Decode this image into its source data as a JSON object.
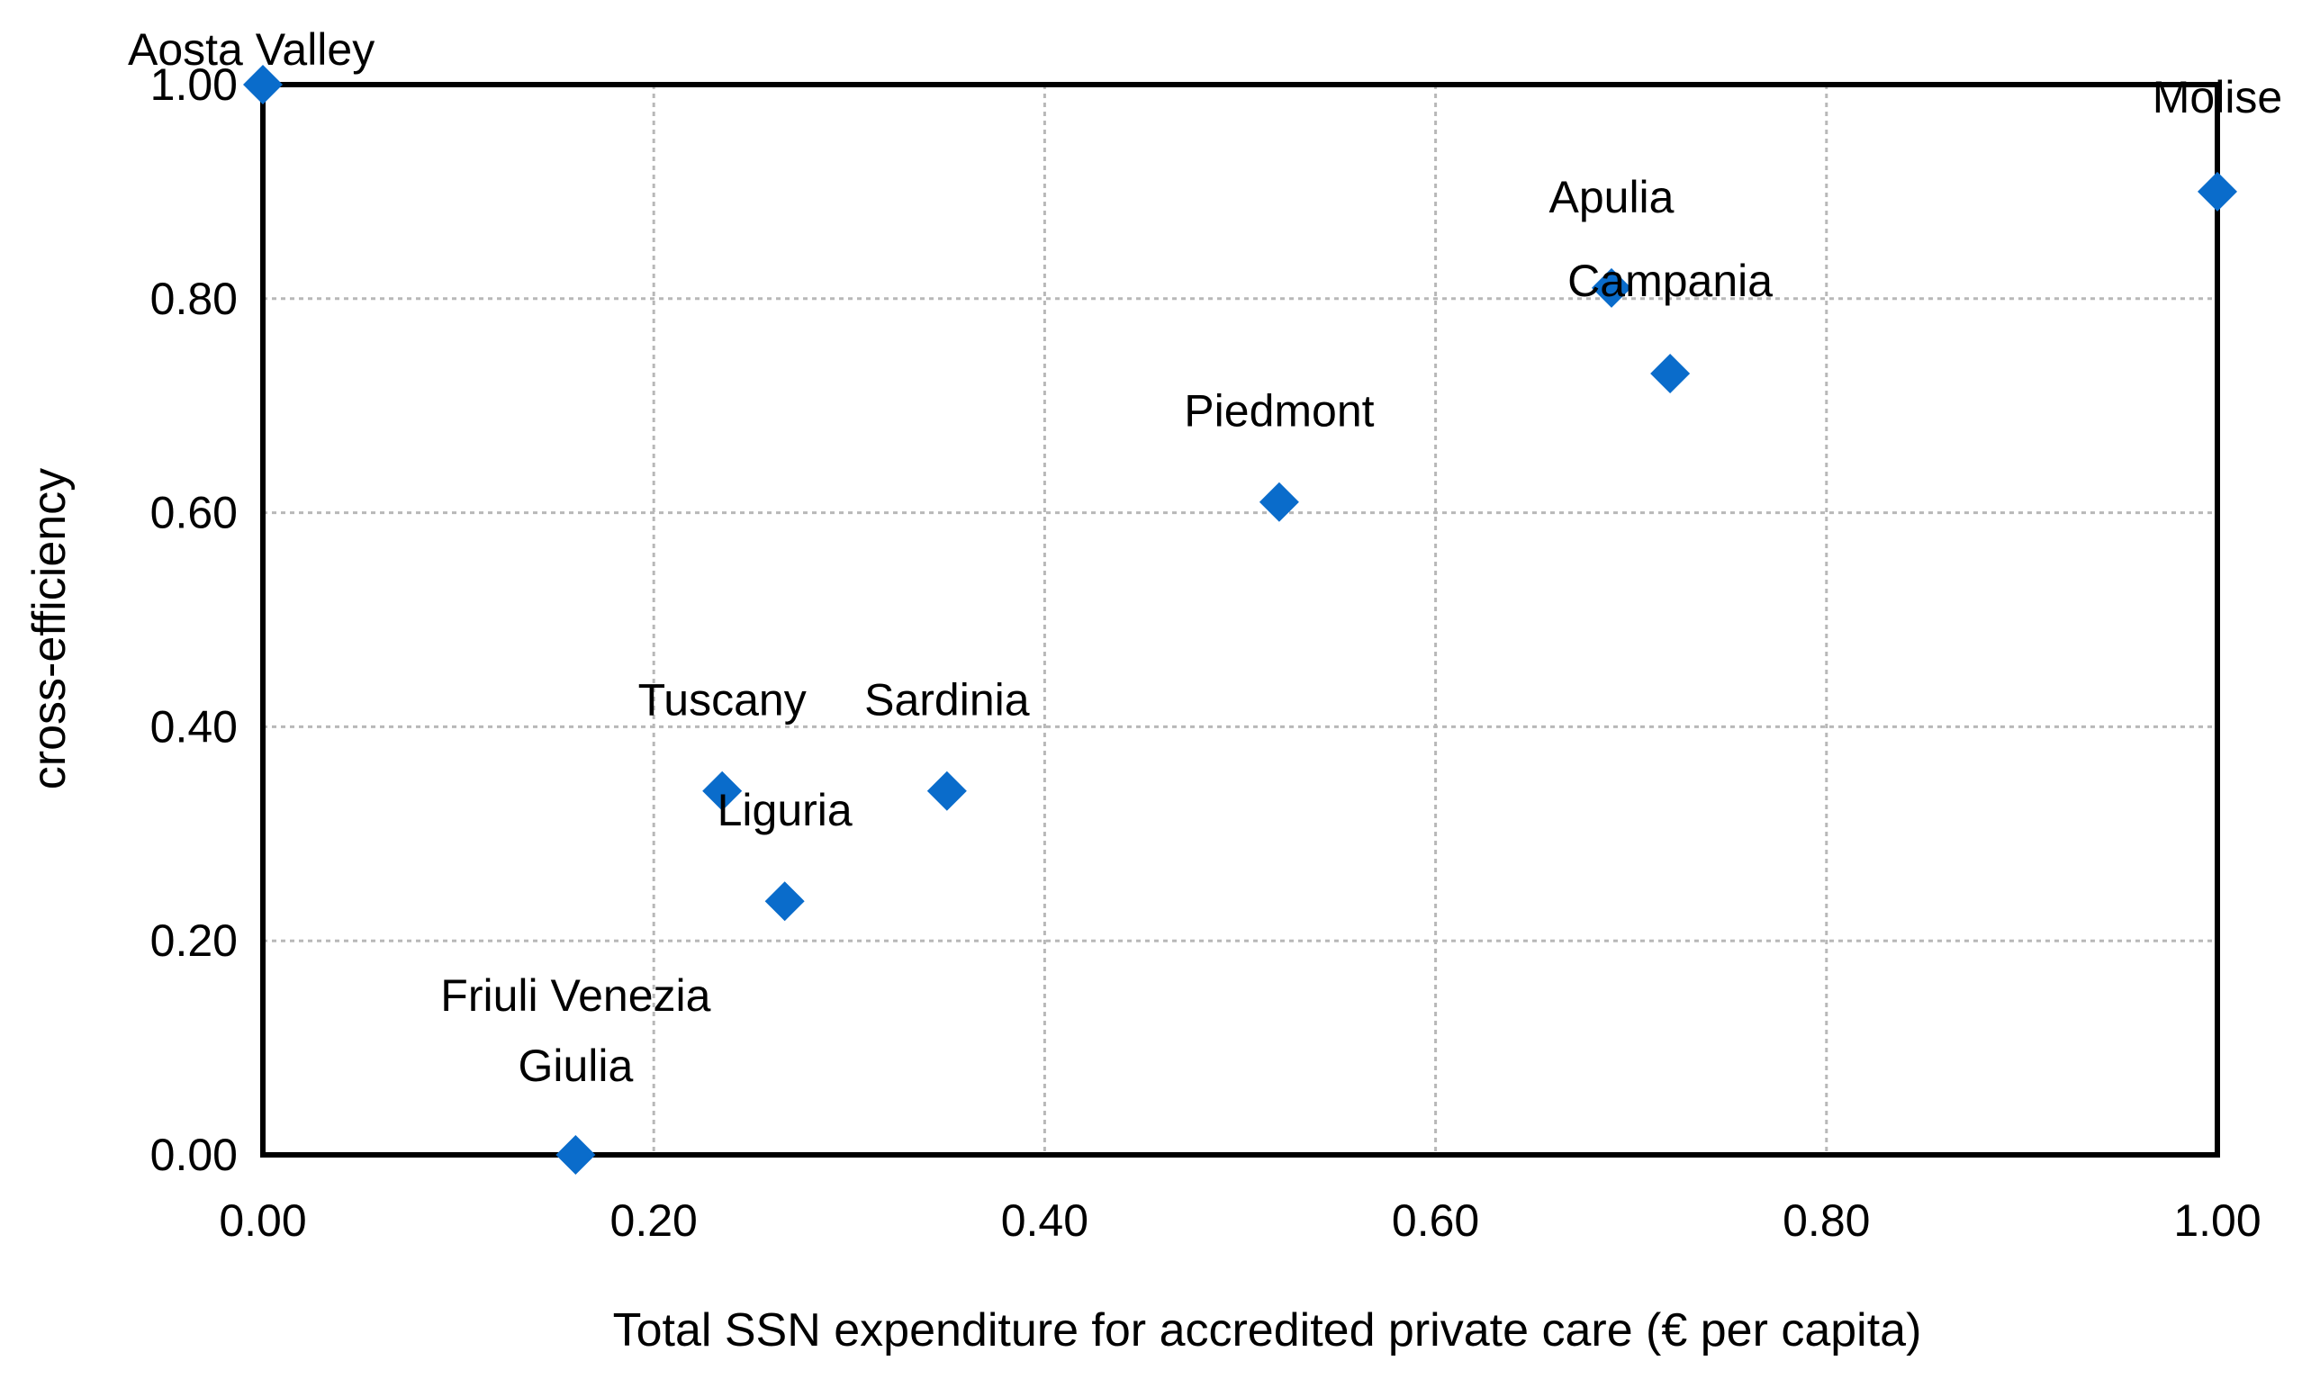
{
  "chart_data": {
    "type": "scatter",
    "title": "",
    "xlabel": "Total SSN expenditure for accredited private care (€ per capita)",
    "ylabel": "cross-efficiency",
    "xlim": [
      0,
      1
    ],
    "ylim": [
      0,
      1
    ],
    "x_ticks": [
      "0.00",
      "0.20",
      "0.40",
      "0.60",
      "0.80",
      "1.00"
    ],
    "y_ticks": [
      "0.00",
      "0.20",
      "0.40",
      "0.60",
      "0.80",
      "1.00"
    ],
    "grid": true,
    "marker_color": "#0a6ccb",
    "points": [
      {
        "label": "Aosta Valley",
        "label_lines": [
          "Aosta Valley"
        ],
        "x": 0.0,
        "y": 1.0
      },
      {
        "label": "Molise",
        "label_lines": [
          "Molise"
        ],
        "x": 1.0,
        "y": 0.9
      },
      {
        "label": "Apulia",
        "label_lines": [
          "Apulia"
        ],
        "x": 0.69,
        "y": 0.81
      },
      {
        "label": "Campania",
        "label_lines": [
          "Campania"
        ],
        "x": 0.72,
        "y": 0.73
      },
      {
        "label": "Piedmont",
        "label_lines": [
          "Piedmont"
        ],
        "x": 0.52,
        "y": 0.61
      },
      {
        "label": "Tuscany",
        "label_lines": [
          "Tuscany"
        ],
        "x": 0.235,
        "y": 0.34
      },
      {
        "label": "Sardinia",
        "label_lines": [
          "Sardinia"
        ],
        "x": 0.35,
        "y": 0.34
      },
      {
        "label": "Liguria",
        "label_lines": [
          "Liguria"
        ],
        "x": 0.267,
        "y": 0.237
      },
      {
        "label": "Friuli Venezia Giulia",
        "label_lines": [
          "Friuli Venezia",
          "Giulia"
        ],
        "x": 0.16,
        "y": 0.0
      }
    ]
  }
}
